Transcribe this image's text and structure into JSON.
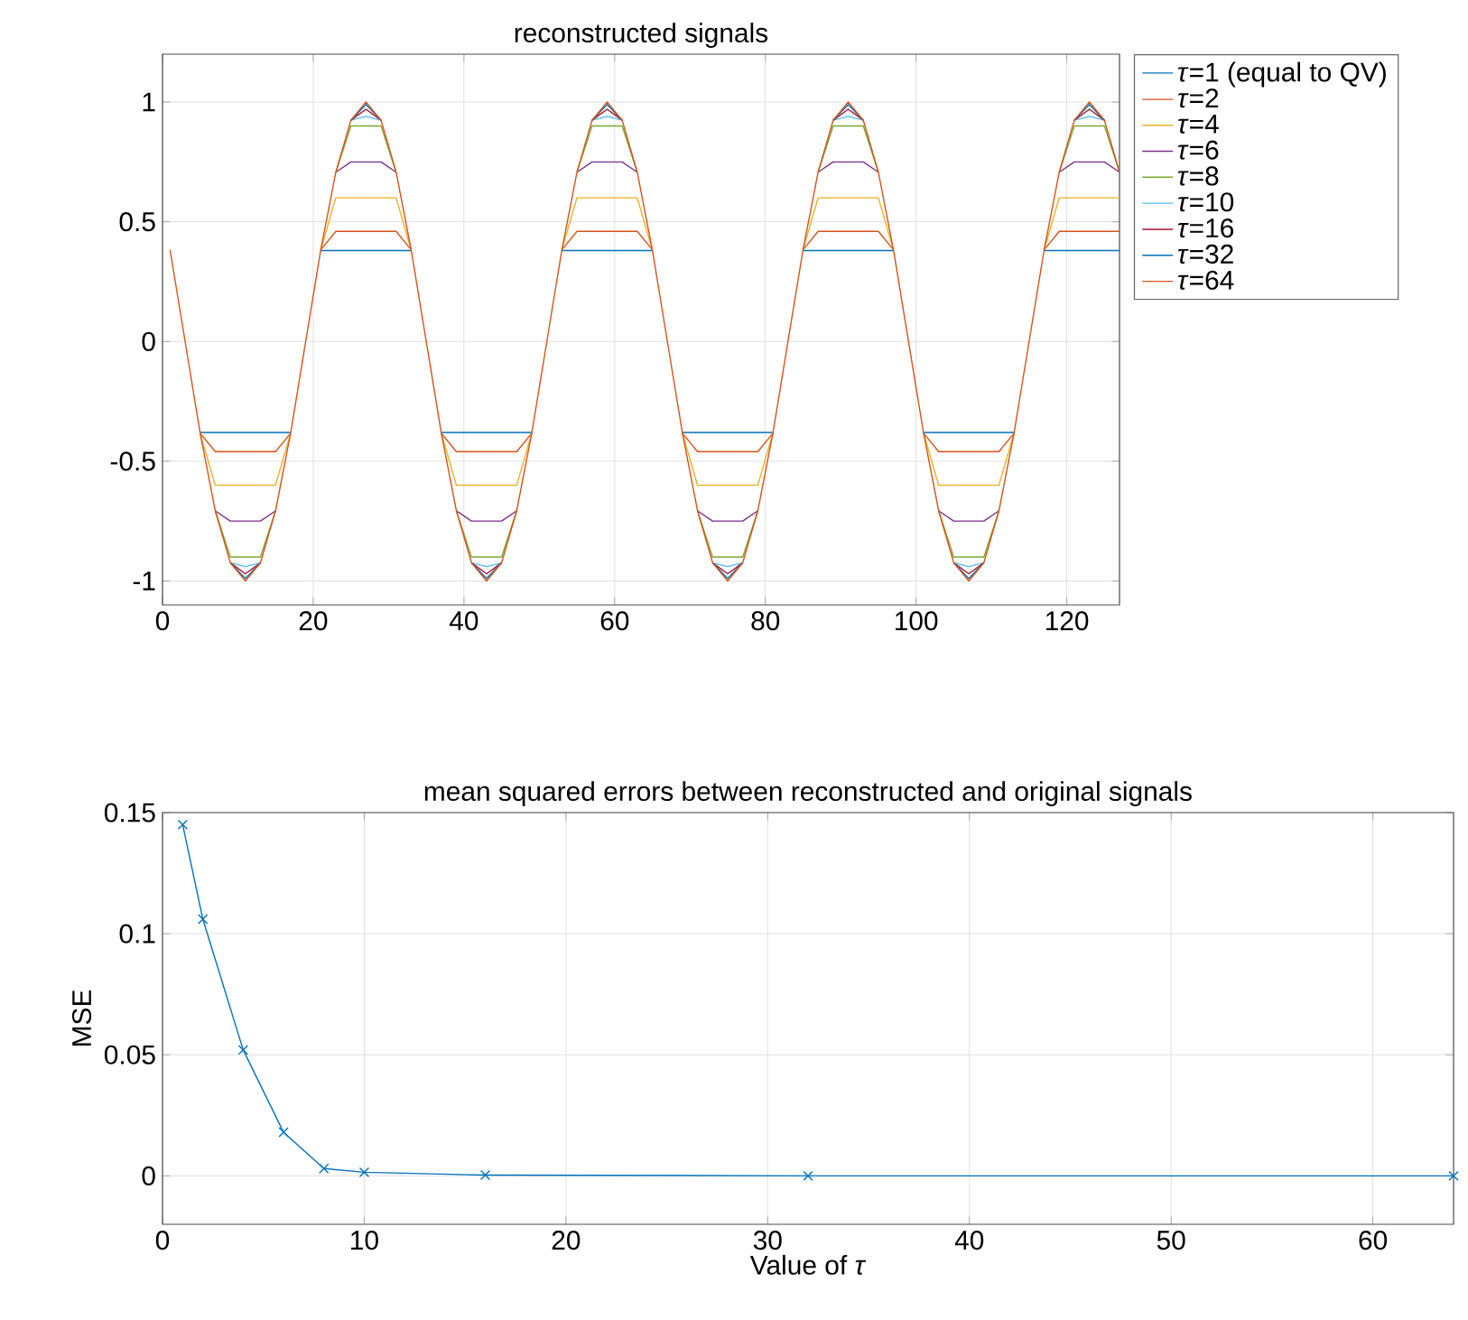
{
  "chart_data": [
    {
      "type": "line",
      "title": "reconstructed signals",
      "xlim": [
        0,
        127
      ],
      "ylim": [
        -1.1,
        1.2
      ],
      "xticks": [
        0,
        20,
        40,
        60,
        80,
        100,
        120
      ],
      "yticks": [
        -1,
        -0.5,
        0,
        0.5,
        1
      ],
      "grid": true,
      "legend": "top right",
      "x": [
        1,
        3,
        5,
        7,
        9,
        11,
        13,
        15,
        17,
        19,
        21,
        23,
        25,
        27,
        29,
        31,
        33,
        35,
        37,
        39,
        41,
        43,
        45,
        47,
        49,
        51,
        53,
        55,
        57,
        59,
        61,
        63,
        65,
        67,
        69,
        71,
        73,
        75,
        77,
        79,
        81,
        83,
        85,
        87,
        89,
        91,
        93,
        95,
        97,
        99,
        101,
        103,
        105,
        107,
        109,
        111,
        113,
        115,
        117,
        119,
        121,
        123,
        125,
        127
      ],
      "series": [
        {
          "name": "*τ*=1 (equal to QV)",
          "color": "#0072bd",
          "values": [
            null,
            null,
            -0.38,
            -0.38,
            -0.38,
            -0.38,
            -0.38,
            -0.38,
            -0.38,
            null,
            0.38,
            0.38,
            0.38,
            0.38,
            0.38,
            0.38,
            0.38,
            null,
            -0.38,
            -0.38,
            -0.38,
            -0.38,
            -0.38,
            -0.38,
            -0.38,
            null,
            0.38,
            0.38,
            0.38,
            0.38,
            0.38,
            0.38,
            0.38,
            null,
            -0.38,
            -0.38,
            -0.38,
            -0.38,
            -0.38,
            -0.38,
            -0.38,
            null,
            0.38,
            0.38,
            0.38,
            0.38,
            0.38,
            0.38,
            0.38,
            null,
            -0.38,
            -0.38,
            -0.38,
            -0.38,
            -0.38,
            -0.38,
            -0.38,
            null,
            0.38,
            0.38,
            0.38,
            0.38,
            0.38,
            0.38
          ]
        },
        {
          "name": "*τ*=2",
          "color": "#d95319",
          "values": [
            null,
            null,
            -0.383,
            -0.46,
            -0.46,
            -0.46,
            -0.46,
            -0.46,
            -0.383,
            null,
            0.383,
            0.46,
            0.46,
            0.46,
            0.46,
            0.46,
            0.383,
            null,
            -0.383,
            -0.46,
            -0.46,
            -0.46,
            -0.46,
            -0.46,
            -0.383,
            null,
            0.383,
            0.46,
            0.46,
            0.46,
            0.46,
            0.46,
            0.383,
            null,
            -0.383,
            -0.46,
            -0.46,
            -0.46,
            -0.46,
            -0.46,
            -0.383,
            null,
            0.383,
            0.46,
            0.46,
            0.46,
            0.46,
            0.46,
            0.383,
            null,
            -0.383,
            -0.46,
            -0.46,
            -0.46,
            -0.46,
            -0.46,
            -0.383,
            null,
            0.383,
            0.46,
            0.46,
            0.46,
            0.46,
            0.46
          ]
        },
        {
          "name": "*τ*=4",
          "color": "#edb120",
          "values": [
            null,
            null,
            -0.383,
            -0.6,
            -0.6,
            -0.6,
            -0.6,
            -0.6,
            -0.383,
            null,
            0.383,
            0.6,
            0.6,
            0.6,
            0.6,
            0.6,
            0.383,
            null,
            -0.383,
            -0.6,
            -0.6,
            -0.6,
            -0.6,
            -0.6,
            -0.383,
            null,
            0.383,
            0.6,
            0.6,
            0.6,
            0.6,
            0.6,
            0.383,
            null,
            -0.383,
            -0.6,
            -0.6,
            -0.6,
            -0.6,
            -0.6,
            -0.383,
            null,
            0.383,
            0.6,
            0.6,
            0.6,
            0.6,
            0.6,
            0.383,
            null,
            -0.383,
            -0.6,
            -0.6,
            -0.6,
            -0.6,
            -0.6,
            -0.383,
            null,
            0.383,
            0.6,
            0.6,
            0.6,
            0.6,
            0.6
          ]
        },
        {
          "name": "*τ*=6",
          "color": "#7e2f8e",
          "values": [
            null,
            null,
            null,
            -0.707,
            -0.75,
            -0.75,
            -0.75,
            -0.707,
            null,
            null,
            null,
            0.707,
            0.75,
            0.75,
            0.75,
            0.707,
            null,
            null,
            null,
            -0.707,
            -0.75,
            -0.75,
            -0.75,
            -0.707,
            null,
            null,
            null,
            0.707,
            0.75,
            0.75,
            0.75,
            0.707,
            null,
            null,
            null,
            -0.707,
            -0.75,
            -0.75,
            -0.75,
            -0.707,
            null,
            null,
            null,
            0.707,
            0.75,
            0.75,
            0.75,
            0.707,
            null,
            null,
            null,
            -0.707,
            -0.75,
            -0.75,
            -0.75,
            -0.707,
            null,
            null,
            null,
            0.707,
            0.75,
            0.75,
            0.75,
            0.707
          ]
        },
        {
          "name": "*τ*=8",
          "color": "#77ac30",
          "values": [
            null,
            null,
            null,
            -0.707,
            -0.9,
            -0.9,
            -0.9,
            -0.707,
            null,
            null,
            null,
            0.707,
            0.9,
            0.9,
            0.9,
            0.707,
            null,
            null,
            null,
            -0.707,
            -0.9,
            -0.9,
            -0.9,
            -0.707,
            null,
            null,
            null,
            0.707,
            0.9,
            0.9,
            0.9,
            0.707,
            null,
            null,
            null,
            -0.707,
            -0.9,
            -0.9,
            -0.9,
            -0.707,
            null,
            null,
            null,
            0.707,
            0.9,
            0.9,
            0.9,
            0.707,
            null,
            null,
            null,
            -0.707,
            -0.9,
            -0.9,
            -0.9,
            -0.707,
            null,
            null,
            null,
            0.707,
            0.9,
            0.9,
            0.9,
            0.707
          ]
        },
        {
          "name": "*τ*=10",
          "color": "#4dbeee",
          "values": [
            null,
            null,
            null,
            null,
            -0.924,
            -0.94,
            -0.924,
            null,
            null,
            null,
            null,
            null,
            0.924,
            0.94,
            0.924,
            null,
            null,
            null,
            null,
            null,
            -0.924,
            -0.94,
            -0.924,
            null,
            null,
            null,
            null,
            null,
            0.924,
            0.94,
            0.924,
            null,
            null,
            null,
            null,
            null,
            -0.924,
            -0.94,
            -0.924,
            null,
            null,
            null,
            null,
            null,
            0.924,
            0.94,
            0.924,
            null,
            null,
            null,
            null,
            null,
            -0.924,
            -0.94,
            -0.924,
            null,
            null,
            null,
            null,
            null,
            0.924,
            0.94,
            0.924,
            null
          ]
        },
        {
          "name": "*τ*=16",
          "color": "#a2142f",
          "values": [
            null,
            null,
            null,
            null,
            -0.924,
            -0.97,
            -0.924,
            null,
            null,
            null,
            null,
            null,
            0.924,
            0.97,
            0.924,
            null,
            null,
            null,
            null,
            null,
            -0.924,
            -0.97,
            -0.924,
            null,
            null,
            null,
            null,
            null,
            0.924,
            0.97,
            0.924,
            null,
            null,
            null,
            null,
            null,
            -0.924,
            -0.97,
            -0.924,
            null,
            null,
            null,
            null,
            null,
            0.924,
            0.97,
            0.924,
            null,
            null,
            null,
            null,
            null,
            -0.924,
            -0.97,
            -0.924,
            null,
            null,
            null,
            null,
            null,
            0.924,
            0.97,
            0.924,
            null
          ]
        },
        {
          "name": "*τ*=32",
          "color": "#0072bd",
          "values": [
            null,
            null,
            null,
            null,
            -0.924,
            -0.99,
            -0.924,
            null,
            null,
            null,
            null,
            null,
            0.924,
            0.99,
            0.924,
            null,
            null,
            null,
            null,
            null,
            -0.924,
            -0.99,
            -0.924,
            null,
            null,
            null,
            null,
            null,
            0.924,
            0.99,
            0.924,
            null,
            null,
            null,
            null,
            null,
            -0.924,
            -0.99,
            -0.924,
            null,
            null,
            null,
            null,
            null,
            0.924,
            0.99,
            0.924,
            null,
            null,
            null,
            null,
            null,
            -0.924,
            -0.99,
            -0.924,
            null,
            null,
            null,
            null,
            null,
            0.924,
            0.99,
            0.924,
            null
          ]
        },
        {
          "name": "*τ*=64",
          "color": "#d95319",
          "values": [
            0.383,
            0,
            -0.383,
            -0.707,
            -0.924,
            -1,
            -0.924,
            -0.707,
            -0.383,
            0,
            0.383,
            0.707,
            0.924,
            1,
            0.924,
            0.707,
            0.383,
            0,
            -0.383,
            -0.707,
            -0.924,
            -1,
            -0.924,
            -0.707,
            -0.383,
            0,
            0.383,
            0.707,
            0.924,
            1,
            0.924,
            0.707,
            0.383,
            0,
            -0.383,
            -0.707,
            -0.924,
            -1,
            -0.924,
            -0.707,
            -0.383,
            0,
            0.383,
            0.707,
            0.924,
            1,
            0.924,
            0.707,
            0.383,
            0,
            -0.383,
            -0.707,
            -0.924,
            -1,
            -0.924,
            -0.707,
            -0.383,
            0,
            0.383,
            0.707,
            0.924,
            1,
            0.924,
            0.707
          ]
        }
      ]
    },
    {
      "type": "line",
      "title": "mean squared errors between reconstructed and original signals",
      "xlabel": "Value of *τ*",
      "ylabel": "MSE",
      "xlim": [
        0,
        64
      ],
      "ylim": [
        -0.02,
        0.15
      ],
      "xticks": [
        0,
        10,
        20,
        30,
        40,
        50,
        60
      ],
      "yticks": [
        0,
        0.05,
        0.1,
        0.15
      ],
      "grid": true,
      "marker": "cross",
      "color": "#0072bd",
      "x": [
        1,
        2,
        4,
        6,
        8,
        10,
        16,
        32,
        64
      ],
      "values": [
        0.145,
        0.106,
        0.052,
        0.018,
        0.003,
        0.0015,
        0.0003,
        0,
        0
      ]
    }
  ]
}
